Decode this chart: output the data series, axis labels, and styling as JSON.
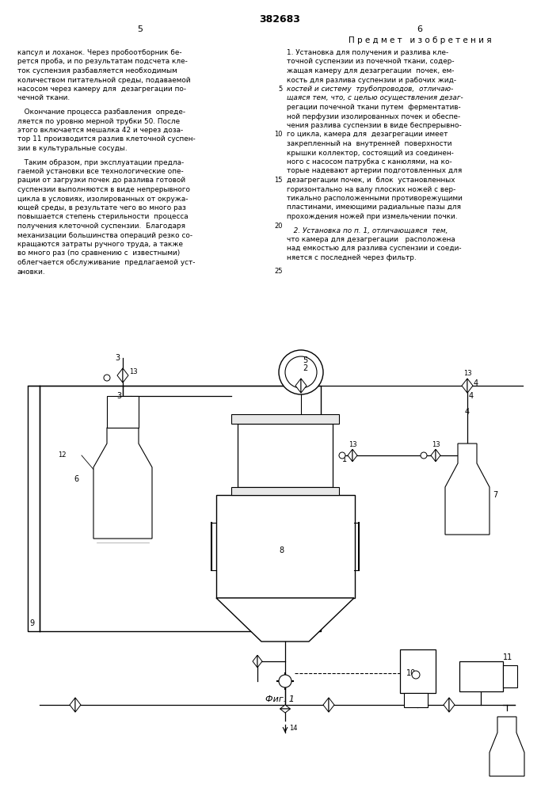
{
  "page_width": 7.07,
  "page_height": 10.0,
  "bg_color": "#ffffff",
  "text_color": "#000000",
  "patent_number": "382683",
  "col_left": "5",
  "col_right": "6",
  "section_title": "П р е д м е т   и з о б р е т е н и я",
  "fig_label": "Фиг. 1"
}
